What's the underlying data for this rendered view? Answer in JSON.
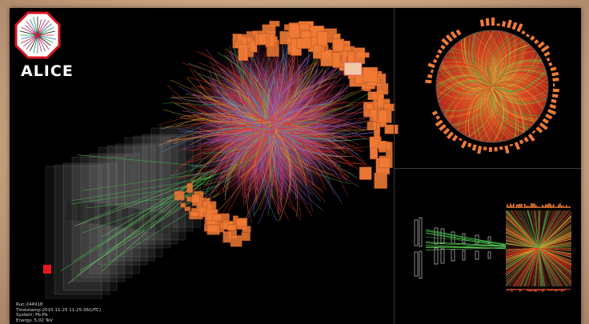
{
  "logo": {
    "text": "ALICE",
    "icon": "alice-logo-icon",
    "color": "#d71920"
  },
  "event_info": {
    "run": "Run:244918",
    "timestamp": "Timestamp:2015-11-25 11:25:36(UTC)",
    "system": "System: Pb-Pb",
    "energy": "Energy: 5.02 TeV"
  },
  "panels": {
    "main": "3d-event-view",
    "top_right": "end-view",
    "bottom_right": "side-view"
  },
  "colors": {
    "background": "#000000",
    "calorimeter": "#f07a35",
    "track_red": "#e8321e",
    "track_green": "#3fbf4a",
    "track_purple": "#8a5ad8",
    "detector_plane": "#8a8a8a"
  }
}
